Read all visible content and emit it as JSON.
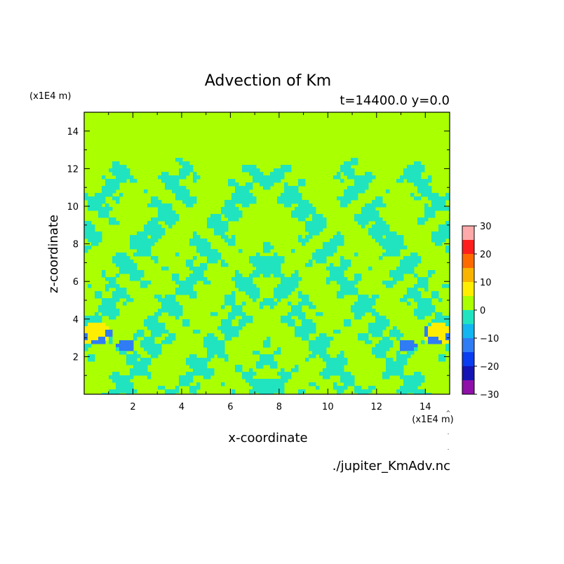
{
  "chart_data": {
    "type": "heatmap",
    "title": "Advection of Km",
    "subtitle": "t=14400.0 y=0.0",
    "xlabel": "x-coordinate",
    "ylabel": "z-coordinate",
    "x_unit": "(x1E4 m)",
    "y_unit": "(x1E4 m)",
    "xlim": [
      0,
      15
    ],
    "ylim": [
      0,
      15
    ],
    "x_ticks": [
      "2",
      "4",
      "6",
      "8",
      "10",
      "12",
      "14"
    ],
    "y_ticks": [
      "2",
      "4",
      "6",
      "8",
      "10",
      "12",
      "14"
    ],
    "field_top": 12,
    "colorbar": {
      "levels": [
        -30,
        -25,
        -20,
        -15,
        -10,
        -5,
        0,
        5,
        10,
        15,
        20,
        25,
        30
      ],
      "tick_labels": [
        "30",
        "20",
        "10",
        "0",
        "−10",
        "−20",
        "−30"
      ],
      "colors": [
        "#8e10a8",
        "#1414b4",
        "#0a3cf0",
        "#2f7cf5",
        "#12b6f0",
        "#20e4c0",
        "#aaff00",
        "#ffee00",
        "#f8b400",
        "#ff6a00",
        "#ff1e1e",
        "#ffaaaa"
      ],
      "background_color": "#aaff00"
    },
    "source": "./jupiter_KmAdv.nc"
  }
}
